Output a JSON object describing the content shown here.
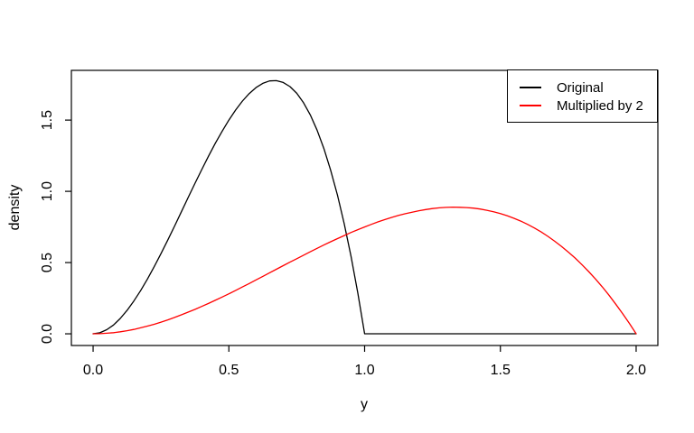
{
  "figure": {
    "background": "#ffffff"
  },
  "chart_data": {
    "type": "line",
    "title": "",
    "xlabel": "y",
    "ylabel": "density",
    "grid": false,
    "xlim": [
      -0.08,
      2.08
    ],
    "ylim": [
      -0.082,
      1.849
    ],
    "x_ticks": [
      0.0,
      0.5,
      1.0,
      1.5,
      2.0
    ],
    "x_tick_labels": [
      "0.0",
      "0.5",
      "1.0",
      "1.5",
      "2.0"
    ],
    "y_ticks": [
      0.0,
      0.5,
      1.0,
      1.5
    ],
    "y_tick_labels": [
      "0.0",
      "0.5",
      "1.0",
      "1.5"
    ],
    "legend": {
      "position": "topright",
      "entries": [
        {
          "label": "Original",
          "color": "#000000"
        },
        {
          "label": "Multiplied by 2",
          "color": "#ff0000"
        }
      ]
    },
    "x": [
      0,
      0.025,
      0.05,
      0.075,
      0.1,
      0.125,
      0.15,
      0.175,
      0.2,
      0.225,
      0.25,
      0.275,
      0.3,
      0.325,
      0.35,
      0.375,
      0.4,
      0.425,
      0.45,
      0.475,
      0.5,
      0.525,
      0.55,
      0.575,
      0.6,
      0.625,
      0.65,
      0.675,
      0.7,
      0.725,
      0.75,
      0.775,
      0.8,
      0.825,
      0.85,
      0.875,
      0.9,
      0.925,
      0.95,
      0.975,
      1,
      1.025,
      1.05,
      1.075,
      1.1,
      1.125,
      1.15,
      1.175,
      1.2,
      1.225,
      1.25,
      1.275,
      1.3,
      1.325,
      1.35,
      1.375,
      1.4,
      1.425,
      1.45,
      1.475,
      1.5,
      1.525,
      1.55,
      1.575,
      1.6,
      1.625,
      1.65,
      1.675,
      1.7,
      1.725,
      1.75,
      1.775,
      1.8,
      1.825,
      1.85,
      1.875,
      1.9,
      1.925,
      1.95,
      1.975,
      2
    ],
    "series": [
      {
        "name": "Original",
        "color": "#000000",
        "values": [
          0,
          0.007,
          0.029,
          0.062,
          0.108,
          0.164,
          0.23,
          0.303,
          0.384,
          0.471,
          0.563,
          0.658,
          0.756,
          0.856,
          0.956,
          1.055,
          1.152,
          1.246,
          1.337,
          1.421,
          1.5,
          1.571,
          1.634,
          1.686,
          1.728,
          1.758,
          1.775,
          1.777,
          1.764,
          1.735,
          1.688,
          1.622,
          1.536,
          1.429,
          1.301,
          1.148,
          0.972,
          0.77,
          0.542,
          0.285,
          0,
          0,
          0,
          0,
          0,
          0,
          0,
          0,
          0,
          0,
          0,
          0,
          0,
          0,
          0,
          0,
          0,
          0,
          0,
          0,
          0,
          0,
          0,
          0,
          0,
          0,
          0,
          0,
          0,
          0,
          0,
          0,
          0,
          0,
          0,
          0,
          0,
          0,
          0,
          0,
          0
        ]
      },
      {
        "name": "Multiplied by 2",
        "color": "#ff0000",
        "values": [
          0,
          0.001,
          0.004,
          0.008,
          0.014,
          0.022,
          0.031,
          0.042,
          0.054,
          0.067,
          0.082,
          0.098,
          0.115,
          0.133,
          0.152,
          0.171,
          0.192,
          0.213,
          0.235,
          0.258,
          0.281,
          0.305,
          0.329,
          0.353,
          0.378,
          0.403,
          0.428,
          0.453,
          0.478,
          0.503,
          0.527,
          0.552,
          0.576,
          0.6,
          0.623,
          0.646,
          0.668,
          0.69,
          0.711,
          0.731,
          0.75,
          0.768,
          0.786,
          0.802,
          0.817,
          0.831,
          0.843,
          0.854,
          0.864,
          0.872,
          0.879,
          0.884,
          0.887,
          0.889,
          0.888,
          0.886,
          0.882,
          0.876,
          0.867,
          0.857,
          0.844,
          0.829,
          0.811,
          0.791,
          0.768,
          0.743,
          0.715,
          0.684,
          0.65,
          0.614,
          0.574,
          0.532,
          0.486,
          0.437,
          0.385,
          0.33,
          0.271,
          0.208,
          0.143,
          0.073,
          0
        ]
      }
    ]
  }
}
